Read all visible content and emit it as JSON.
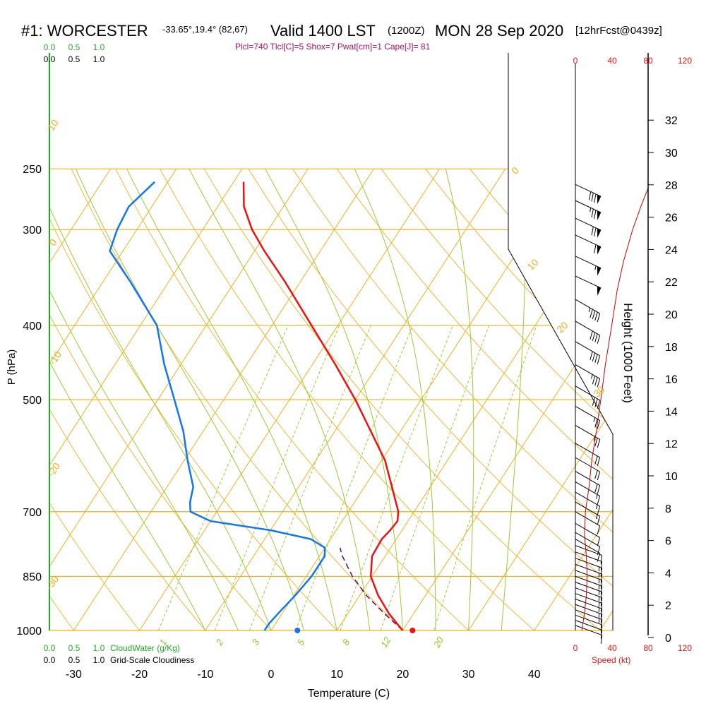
{
  "header": {
    "station": "#1: WORCESTER",
    "coords": "-33.65°,19.4° (82,67)",
    "valid": "Valid 1400 LST",
    "utc": "(1200Z)",
    "date": "MON 28 Sep 2020",
    "forecast": "[12hrFcst@0439z]",
    "indices": "Plcl=740 Tlcl[C]=5 Shox=7 Pwat[cm]=1 Cape[J]= 81"
  },
  "colors": {
    "isotherm": "#f0b020",
    "mixing_ratio": "#99cc33",
    "adiabat": "#ccdd55",
    "temperature": "#ee1111",
    "dewpoint": "#1177ee",
    "parcel": "#660066",
    "cloudwater": "#22aa22",
    "speed": "#cc0000"
  },
  "scales": {
    "cloudwater_ticks": [
      "0.0",
      "0.5",
      "1.0"
    ],
    "cloudiness_ticks": [
      "0.0",
      "0.5",
      "1.0"
    ],
    "speed_ticks": [
      "0",
      "40",
      "80",
      "120"
    ],
    "cloudwater_label": "CloudWater (g/Kg)",
    "cloudiness_label": "Grid-Scale Cloudiness",
    "speed_label": "Speed (kt)"
  },
  "chart_data": {
    "type": "skew-t",
    "xlabel": "Temperature (C)",
    "ylabel": "P (hPa)",
    "height_label": "Height (1000 Feet)",
    "x_ticks": [
      -30,
      -20,
      -10,
      0,
      10,
      20,
      30,
      40
    ],
    "p_ticks": [
      250,
      300,
      400,
      500,
      700,
      850,
      1000
    ],
    "height_ticks": [
      0,
      2,
      4,
      6,
      8,
      10,
      12,
      14,
      16,
      18,
      20,
      22,
      24,
      26,
      28,
      30,
      32
    ],
    "isotherm_labels": [
      "10",
      "0",
      "-10",
      "-20",
      "-30",
      "0",
      "10",
      "20",
      "30"
    ],
    "mixing_ratio_labels": [
      "1",
      "2",
      "3",
      "5",
      "8",
      "12",
      "20"
    ],
    "temperature_profile": [
      {
        "p": 1000,
        "t": 20.0
      },
      {
        "p": 980,
        "t": 18.5
      },
      {
        "p": 950,
        "t": 16.2
      },
      {
        "p": 900,
        "t": 12.8
      },
      {
        "p": 850,
        "t": 9.8
      },
      {
        "p": 800,
        "t": 8.0
      },
      {
        "p": 760,
        "t": 7.8
      },
      {
        "p": 740,
        "t": 8.2
      },
      {
        "p": 720,
        "t": 8.4
      },
      {
        "p": 700,
        "t": 7.6
      },
      {
        "p": 650,
        "t": 4.2
      },
      {
        "p": 600,
        "t": 0.5
      },
      {
        "p": 550,
        "t": -4.5
      },
      {
        "p": 500,
        "t": -10.0
      },
      {
        "p": 450,
        "t": -16.5
      },
      {
        "p": 400,
        "t": -24.0
      },
      {
        "p": 350,
        "t": -32.5
      },
      {
        "p": 320,
        "t": -38.5
      },
      {
        "p": 300,
        "t": -42.5
      },
      {
        "p": 280,
        "t": -46.0
      },
      {
        "p": 260,
        "t": -48.5
      }
    ],
    "dewpoint_profile": [
      {
        "p": 1000,
        "t": -1.0
      },
      {
        "p": 980,
        "t": -1.0
      },
      {
        "p": 950,
        "t": -0.6
      },
      {
        "p": 900,
        "t": 0.2
      },
      {
        "p": 850,
        "t": 0.8
      },
      {
        "p": 800,
        "t": 0.8
      },
      {
        "p": 780,
        "t": 0.0
      },
      {
        "p": 760,
        "t": -3.0
      },
      {
        "p": 740,
        "t": -10.0
      },
      {
        "p": 720,
        "t": -20.0
      },
      {
        "p": 700,
        "t": -24.0
      },
      {
        "p": 680,
        "t": -25.0
      },
      {
        "p": 650,
        "t": -26.0
      },
      {
        "p": 600,
        "t": -29.5
      },
      {
        "p": 550,
        "t": -33.0
      },
      {
        "p": 500,
        "t": -37.5
      },
      {
        "p": 450,
        "t": -42.5
      },
      {
        "p": 400,
        "t": -47.5
      },
      {
        "p": 350,
        "t": -56.0
      },
      {
        "p": 320,
        "t": -62.0
      },
      {
        "p": 300,
        "t": -63.0
      },
      {
        "p": 280,
        "t": -63.5
      },
      {
        "p": 260,
        "t": -62.0
      }
    ],
    "parcel_path": [
      {
        "p": 1000,
        "t": 20.0
      },
      {
        "p": 950,
        "t": 15.5
      },
      {
        "p": 900,
        "t": 11.0
      },
      {
        "p": 850,
        "t": 7.0
      },
      {
        "p": 800,
        "t": 3.5
      },
      {
        "p": 780,
        "t": 2.3
      }
    ],
    "surface_temperature": 21.5,
    "surface_dewpoint": 4.0,
    "wind_speed_profile": [
      {
        "p": 1000,
        "s": 7
      },
      {
        "p": 950,
        "s": 10
      },
      {
        "p": 900,
        "s": 12
      },
      {
        "p": 850,
        "s": 13
      },
      {
        "p": 800,
        "s": 12
      },
      {
        "p": 750,
        "s": 10
      },
      {
        "p": 700,
        "s": 11
      },
      {
        "p": 650,
        "s": 15
      },
      {
        "p": 600,
        "s": 18
      },
      {
        "p": 550,
        "s": 23
      },
      {
        "p": 500,
        "s": 28
      },
      {
        "p": 450,
        "s": 33
      },
      {
        "p": 400,
        "s": 40
      },
      {
        "p": 360,
        "s": 46
      },
      {
        "p": 330,
        "s": 53
      },
      {
        "p": 300,
        "s": 63
      },
      {
        "p": 280,
        "s": 72
      },
      {
        "p": 265,
        "s": 80
      }
    ],
    "wind_barbs": [
      {
        "p": 985,
        "dir": 290,
        "spd": 10
      },
      {
        "p": 970,
        "dir": 290,
        "spd": 10
      },
      {
        "p": 955,
        "dir": 290,
        "spd": 10
      },
      {
        "p": 940,
        "dir": 290,
        "spd": 15
      },
      {
        "p": 925,
        "dir": 290,
        "spd": 15
      },
      {
        "p": 910,
        "dir": 290,
        "spd": 15
      },
      {
        "p": 895,
        "dir": 290,
        "spd": 15
      },
      {
        "p": 880,
        "dir": 290,
        "spd": 15
      },
      {
        "p": 865,
        "dir": 290,
        "spd": 15
      },
      {
        "p": 850,
        "dir": 290,
        "spd": 15
      },
      {
        "p": 835,
        "dir": 290,
        "spd": 15
      },
      {
        "p": 820,
        "dir": 290,
        "spd": 15
      },
      {
        "p": 805,
        "dir": 290,
        "spd": 15
      },
      {
        "p": 790,
        "dir": 290,
        "spd": 10
      },
      {
        "p": 775,
        "dir": 290,
        "spd": 10
      },
      {
        "p": 760,
        "dir": 300,
        "spd": 10
      },
      {
        "p": 745,
        "dir": 300,
        "spd": 10
      },
      {
        "p": 725,
        "dir": 300,
        "spd": 10
      },
      {
        "p": 700,
        "dir": 300,
        "spd": 10
      },
      {
        "p": 680,
        "dir": 300,
        "spd": 15
      },
      {
        "p": 660,
        "dir": 300,
        "spd": 15
      },
      {
        "p": 640,
        "dir": 300,
        "spd": 15
      },
      {
        "p": 620,
        "dir": 300,
        "spd": 20
      },
      {
        "p": 595,
        "dir": 300,
        "spd": 20
      },
      {
        "p": 570,
        "dir": 300,
        "spd": 20
      },
      {
        "p": 540,
        "dir": 300,
        "spd": 25
      },
      {
        "p": 510,
        "dir": 300,
        "spd": 25
      },
      {
        "p": 480,
        "dir": 300,
        "spd": 30
      },
      {
        "p": 450,
        "dir": 300,
        "spd": 35
      },
      {
        "p": 420,
        "dir": 300,
        "spd": 40
      },
      {
        "p": 395,
        "dir": 300,
        "spd": 40
      },
      {
        "p": 370,
        "dir": 300,
        "spd": 45
      },
      {
        "p": 345,
        "dir": 295,
        "spd": 50
      },
      {
        "p": 325,
        "dir": 295,
        "spd": 55
      },
      {
        "p": 305,
        "dir": 295,
        "spd": 60
      },
      {
        "p": 290,
        "dir": 295,
        "spd": 70
      },
      {
        "p": 275,
        "dir": 295,
        "spd": 75
      },
      {
        "p": 262,
        "dir": 295,
        "spd": 80
      }
    ]
  }
}
